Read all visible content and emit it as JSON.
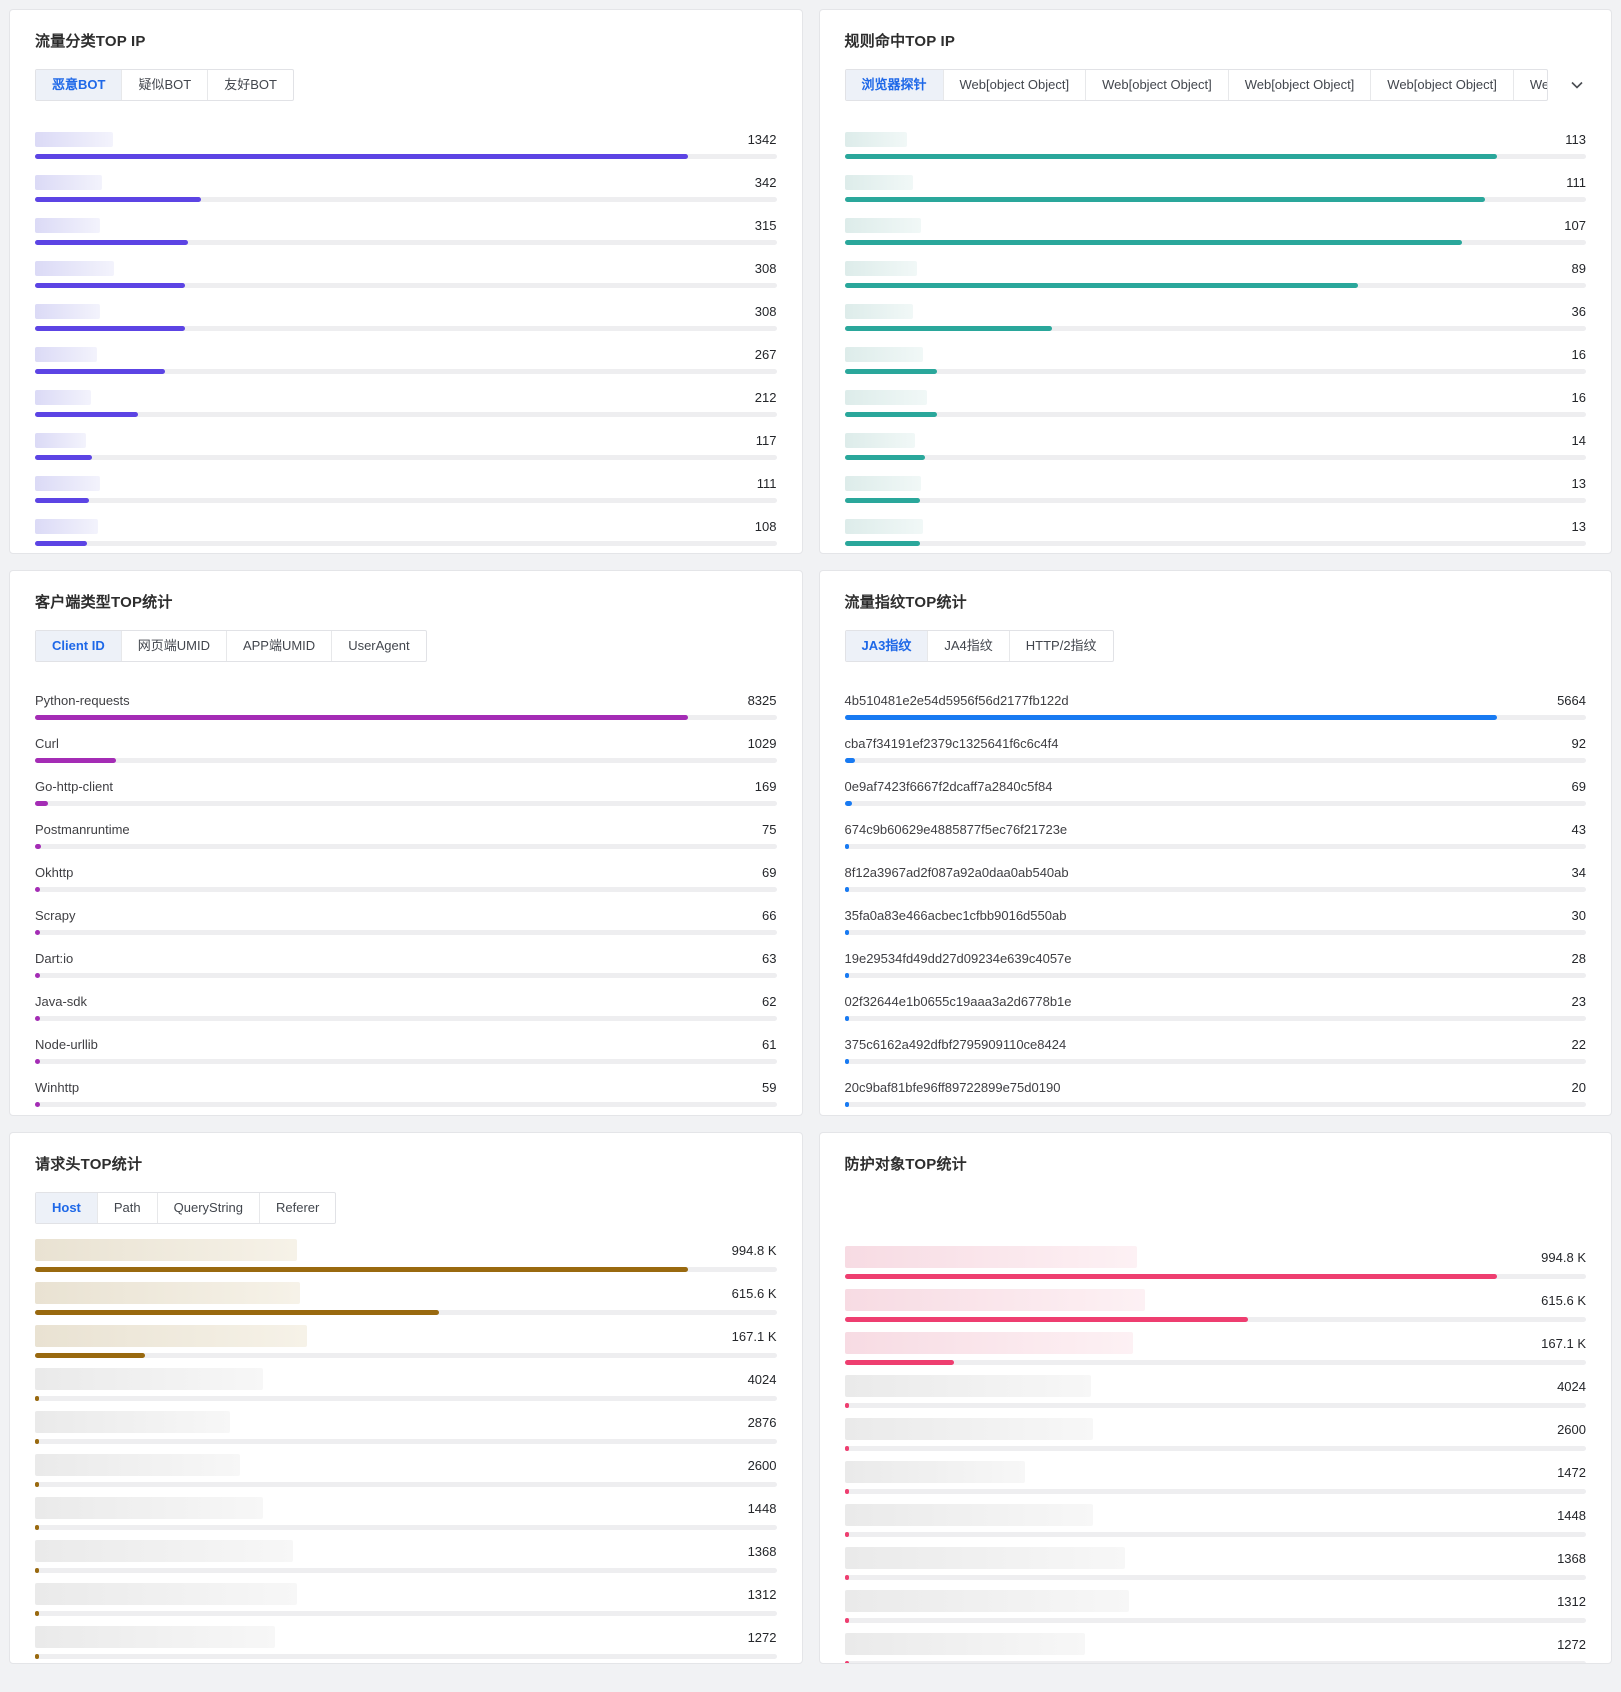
{
  "page": {
    "background": "#f1f2f4",
    "track_color": "#eeeef0",
    "blob_gray": {
      "from": "#eaeaea",
      "to": "#f7f7f7"
    }
  },
  "panels": [
    {
      "name": "traffic-class-top-ip",
      "title": "流量分类TOP IP",
      "accent": "#5c44e4",
      "blob": {
        "from": "#dbdaf6",
        "to": "#f3f3fc"
      },
      "tabs": {
        "items": [
          "恶意BOT",
          "疑似BOT",
          "友好BOT"
        ],
        "active": 0
      },
      "max": 1342,
      "rows": [
        {
          "value": "1342",
          "num": 1342,
          "blob_w": 78
        },
        {
          "value": "342",
          "num": 342,
          "blob_w": 67
        },
        {
          "value": "315",
          "num": 315,
          "blob_w": 65
        },
        {
          "value": "308",
          "num": 308,
          "blob_w": 79
        },
        {
          "value": "308",
          "num": 308,
          "blob_w": 65
        },
        {
          "value": "267",
          "num": 267,
          "blob_w": 62
        },
        {
          "value": "212",
          "num": 212,
          "blob_w": 56
        },
        {
          "value": "117",
          "num": 117,
          "blob_w": 51
        },
        {
          "value": "111",
          "num": 111,
          "blob_w": 65
        },
        {
          "value": "108",
          "num": 108,
          "blob_w": 63
        }
      ]
    },
    {
      "name": "rule-hit-top-ip",
      "title": "规则命中TOP IP",
      "accent": "#2aa79b",
      "blob": {
        "from": "#ddecea",
        "to": "#f1f8f7"
      },
      "tabs": {
        "items": [
          "浏览器探针",
          "Web[object Object]",
          "Web[object Object]",
          "Web[object Object]",
          "Web[object Object]",
          "Web[object Object]"
        ],
        "active": 0,
        "clipped": true,
        "overflow_icon": "chevron-down"
      },
      "max": 113,
      "rows": [
        {
          "value": "113",
          "num": 113,
          "blob_w": 62
        },
        {
          "value": "111",
          "num": 111,
          "blob_w": 68
        },
        {
          "value": "107",
          "num": 107,
          "blob_w": 76
        },
        {
          "value": "89",
          "num": 89,
          "blob_w": 72
        },
        {
          "value": "36",
          "num": 36,
          "blob_w": 68
        },
        {
          "value": "16",
          "num": 16,
          "blob_w": 78
        },
        {
          "value": "16",
          "num": 16,
          "blob_w": 82
        },
        {
          "value": "14",
          "num": 14,
          "blob_w": 70
        },
        {
          "value": "13",
          "num": 13,
          "blob_w": 76
        },
        {
          "value": "13",
          "num": 13,
          "blob_w": 78
        }
      ]
    },
    {
      "name": "client-type-top-stats",
      "title": "客户端类型TOP统计",
      "accent": "#a42cb5",
      "tabs": {
        "items": [
          "Client ID",
          "网页端UMID",
          "APP端UMID",
          "UserAgent"
        ],
        "active": 0
      },
      "max": 8325,
      "rows": [
        {
          "label": "Python-requests",
          "value": "8325",
          "num": 8325
        },
        {
          "label": "Curl",
          "value": "1029",
          "num": 1029
        },
        {
          "label": "Go-http-client",
          "value": "169",
          "num": 169
        },
        {
          "label": "Postmanruntime",
          "value": "75",
          "num": 75
        },
        {
          "label": "Okhttp",
          "value": "69",
          "num": 69
        },
        {
          "label": "Scrapy",
          "value": "66",
          "num": 66
        },
        {
          "label": "Dart:io",
          "value": "63",
          "num": 63
        },
        {
          "label": "Java-sdk",
          "value": "62",
          "num": 62
        },
        {
          "label": "Node-urllib",
          "value": "61",
          "num": 61
        },
        {
          "label": "Winhttp",
          "value": "59",
          "num": 59
        }
      ]
    },
    {
      "name": "traffic-fingerprint-top-stats",
      "title": "流量指纹TOP统计",
      "accent": "#187af2",
      "tabs": {
        "items": [
          "JA3指纹",
          "JA4指纹",
          "HTTP/2指纹"
        ],
        "active": 0
      },
      "max": 5664,
      "rows": [
        {
          "label": "4b510481e2e54d5956f56d2177fb122d",
          "value": "5664",
          "num": 5664
        },
        {
          "label": "cba7f34191ef2379c1325641f6c6c4f4",
          "value": "92",
          "num": 92
        },
        {
          "label": "0e9af7423f6667f2dcaff7a2840c5f84",
          "value": "69",
          "num": 69
        },
        {
          "label": "674c9b60629e4885877f5ec76f21723e",
          "value": "43",
          "num": 43
        },
        {
          "label": "8f12a3967ad2f087a92a0daa0ab540ab",
          "value": "34",
          "num": 34
        },
        {
          "label": "35fa0a83e466acbec1cfbb9016d550ab",
          "value": "30",
          "num": 30
        },
        {
          "label": "19e29534fd49dd27d09234e639c4057e",
          "value": "28",
          "num": 28
        },
        {
          "label": "02f32644e1b0655c19aaa3a2d6778b1e",
          "value": "23",
          "num": 23
        },
        {
          "label": "375c6162a492dfbf2795909110ce8424",
          "value": "22",
          "num": 22
        },
        {
          "label": "20c9baf81bfe96ff89722899e75d0190",
          "value": "20",
          "num": 20
        }
      ]
    },
    {
      "name": "request-header-top-stats",
      "title": "请求头TOP统计",
      "accent": "#99690f",
      "blob": {
        "from": "#e9e2d2",
        "to": "#f6f2e8"
      },
      "tabs": {
        "items": [
          "Host",
          "Path",
          "QueryString",
          "Referer"
        ],
        "active": 0
      },
      "max": 994800,
      "large_rows": true,
      "rows": [
        {
          "value": "994.8 K",
          "num": 994800,
          "blob_w": 262
        },
        {
          "value": "615.6 K",
          "num": 615600,
          "blob_w": 265
        },
        {
          "value": "167.1 K",
          "num": 167100,
          "blob_w": 272
        },
        {
          "value": "4024",
          "num": 4024,
          "blob_w": 228,
          "gray": true
        },
        {
          "value": "2876",
          "num": 2876,
          "blob_w": 195,
          "gray": true
        },
        {
          "value": "2600",
          "num": 2600,
          "blob_w": 205,
          "gray": true
        },
        {
          "value": "1448",
          "num": 1448,
          "blob_w": 228,
          "gray": true
        },
        {
          "value": "1368",
          "num": 1368,
          "blob_w": 258,
          "gray": true
        },
        {
          "value": "1312",
          "num": 1312,
          "blob_w": 262,
          "gray": true
        },
        {
          "value": "1272",
          "num": 1272,
          "blob_w": 240,
          "gray": true
        }
      ]
    },
    {
      "name": "protected-object-top-stats",
      "title": "防护对象TOP统计",
      "accent": "#ee3e70",
      "blob": {
        "from": "#f7dbe3",
        "to": "#fdf1f4"
      },
      "max": 994800,
      "large_rows": true,
      "rows": [
        {
          "value": "994.8 K",
          "num": 994800,
          "blob_w": 292
        },
        {
          "value": "615.6 K",
          "num": 615600,
          "blob_w": 300
        },
        {
          "value": "167.1 K",
          "num": 167100,
          "blob_w": 288
        },
        {
          "value": "4024",
          "num": 4024,
          "blob_w": 246,
          "gray": true
        },
        {
          "value": "2600",
          "num": 2600,
          "blob_w": 248,
          "gray": true
        },
        {
          "value": "1472",
          "num": 1472,
          "blob_w": 180,
          "gray": true
        },
        {
          "value": "1448",
          "num": 1448,
          "blob_w": 248,
          "gray": true
        },
        {
          "value": "1368",
          "num": 1368,
          "blob_w": 280,
          "gray": true
        },
        {
          "value": "1312",
          "num": 1312,
          "blob_w": 284,
          "gray": true
        },
        {
          "value": "1272",
          "num": 1272,
          "blob_w": 240,
          "gray": true
        }
      ]
    }
  ]
}
